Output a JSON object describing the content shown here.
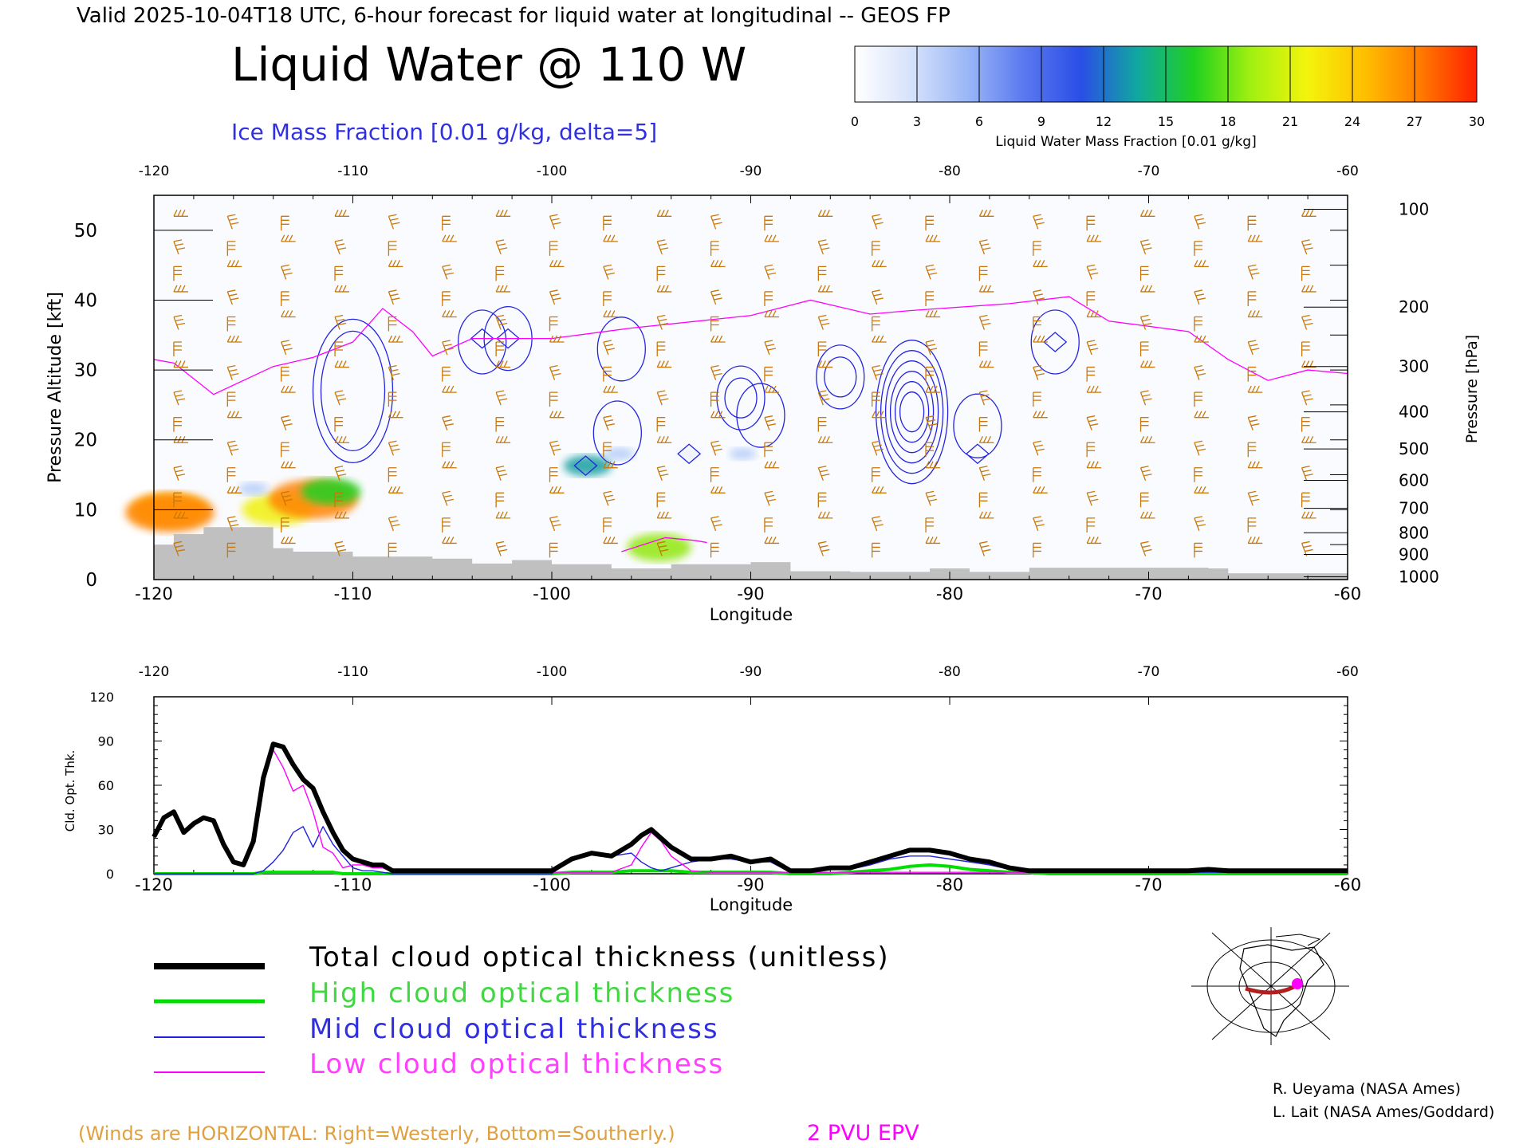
{
  "header": {
    "valid_line": "Valid 2025-10-04T18 UTC, 6-hour forecast for liquid water at longitudinal -- GEOS FP",
    "main_title": "Liquid Water @ 110 W",
    "ice_subtitle": "Ice Mass Fraction [0.01 g/kg, delta=5]"
  },
  "colorbar": {
    "label": "Liquid Water Mass Fraction [0.01 g/kg]",
    "ticks": [
      "0",
      "3",
      "6",
      "9",
      "12",
      "15",
      "18",
      "21",
      "24",
      "27",
      "30"
    ],
    "colors": [
      "#ecf0fc",
      "#b4ccf8",
      "#7c9cf4",
      "#3c5ee8",
      "#16a0a0",
      "#20d020",
      "#92e810",
      "#f0f008",
      "#ffc400",
      "#ff8200"
    ]
  },
  "colors": {
    "wind_barbs": "#c8780a",
    "ice_contours": "#2424e0",
    "epv_line": "#ff00ff",
    "terrain": "#c0c0c0"
  },
  "footer": {
    "winds_note": "(Winds are HORIZONTAL: Right=Westerly, Bottom=Southerly.)",
    "epv_label": "2 PVU EPV",
    "credit1": "R. Ueyama (NASA Ames)",
    "credit2": "L. Lait (NASA Ames/Goddard)"
  },
  "legend": [
    {
      "label": "Total cloud optical thickness (unitless)",
      "color": "#000000"
    },
    {
      "label": "High cloud optical thickness",
      "color": "#00e000"
    },
    {
      "label": "Mid cloud optical thickness",
      "color": "#2020e0"
    },
    {
      "label": "Low cloud optical thickness",
      "color": "#ff00ff"
    }
  ],
  "chart_data": [
    {
      "type": "heatmap",
      "title": "Liquid Water @ 110 W",
      "xlabel": "Longitude",
      "ylabel": "Pressure Altitude [kft]",
      "y2label": "Pressure [hPa]",
      "xlim": [
        -120,
        -60
      ],
      "ylim": [
        0,
        55
      ],
      "xticks": [
        "-120",
        "-110",
        "-100",
        "-90",
        "-80",
        "-70",
        "-60"
      ],
      "yticks": [
        "0",
        "10",
        "20",
        "30",
        "40",
        "50"
      ],
      "pressure_ticks": [
        {
          "label": "100",
          "kft": 53
        },
        {
          "label": "200",
          "kft": 39
        },
        {
          "label": "300",
          "kft": 30.5
        },
        {
          "label": "400",
          "kft": 24
        },
        {
          "label": "500",
          "kft": 18.7
        },
        {
          "label": "600",
          "kft": 14.2
        },
        {
          "label": "700",
          "kft": 10.2
        },
        {
          "label": "800",
          "kft": 6.7
        },
        {
          "label": "900",
          "kft": 3.6
        },
        {
          "label": "1000",
          "kft": 0.4
        }
      ],
      "liquid_water": [
        {
          "lon": -119.2,
          "kft": 10,
          "value": 24
        },
        {
          "lon": -119.2,
          "kft": 9.6,
          "value": 30
        },
        {
          "lon": -113.8,
          "kft": 10,
          "value": 22
        },
        {
          "lon": -112.0,
          "kft": 11.5,
          "value": 30
        },
        {
          "lon": -111.1,
          "kft": 12.6,
          "value": 17
        },
        {
          "lon": -115.0,
          "kft": 13,
          "value": 4
        },
        {
          "lon": -98.2,
          "kft": 16.3,
          "value": 12
        },
        {
          "lon": -96.6,
          "kft": 18,
          "value": 4
        },
        {
          "lon": -94.6,
          "kft": 4.6,
          "value": 19
        },
        {
          "lon": -90.4,
          "kft": 18,
          "value": 3
        },
        {
          "lon": -93.1,
          "kft": 18,
          "value": 2
        }
      ],
      "epv_2pvu_kft": [
        {
          "lon": -120,
          "kft": 31.5
        },
        {
          "lon": -119,
          "kft": 31
        },
        {
          "lon": -117,
          "kft": 26.5
        },
        {
          "lon": -114,
          "kft": 30.5
        },
        {
          "lon": -112,
          "kft": 31.8
        },
        {
          "lon": -110,
          "kft": 34
        },
        {
          "lon": -108.5,
          "kft": 38.8
        },
        {
          "lon": -107,
          "kft": 35.5
        },
        {
          "lon": -106,
          "kft": 32
        },
        {
          "lon": -104,
          "kft": 34.5
        },
        {
          "lon": -100,
          "kft": 34.5
        },
        {
          "lon": -96,
          "kft": 36
        },
        {
          "lon": -90,
          "kft": 37.8
        },
        {
          "lon": -87,
          "kft": 40
        },
        {
          "lon": -84,
          "kft": 38
        },
        {
          "lon": -82,
          "kft": 38.5
        },
        {
          "lon": -77,
          "kft": 39.5
        },
        {
          "lon": -74,
          "kft": 40.5
        },
        {
          "lon": -72,
          "kft": 37
        },
        {
          "lon": -68,
          "kft": 35.5
        },
        {
          "lon": -66,
          "kft": 31.5
        },
        {
          "lon": -64,
          "kft": 28.5
        },
        {
          "lon": -62,
          "kft": 30
        },
        {
          "lon": -60,
          "kft": 29.5
        }
      ],
      "ice_contours": [
        {
          "lon": -110,
          "kft": 27
        },
        {
          "lon": -103.5,
          "kft": 34
        },
        {
          "lon": -102.2,
          "kft": 34.5
        },
        {
          "lon": -96.5,
          "kft": 33
        },
        {
          "lon": -96.7,
          "kft": 21
        },
        {
          "lon": -90.5,
          "kft": 26
        },
        {
          "lon": -89.5,
          "kft": 23.5
        },
        {
          "lon": -85.5,
          "kft": 29
        },
        {
          "lon": -81.9,
          "kft": 24
        },
        {
          "lon": -78.6,
          "kft": 22
        },
        {
          "lon": -74.7,
          "kft": 34
        }
      ],
      "terrain_kft": [
        {
          "lon": -120,
          "kft": 5
        },
        {
          "lon": -119,
          "kft": 6.5
        },
        {
          "lon": -117.5,
          "kft": 7.5
        },
        {
          "lon": -116,
          "kft": 7.5
        },
        {
          "lon": -114,
          "kft": 4.5
        },
        {
          "lon": -113,
          "kft": 4
        },
        {
          "lon": -110,
          "kft": 3.3
        },
        {
          "lon": -106,
          "kft": 3
        },
        {
          "lon": -104,
          "kft": 2.3
        },
        {
          "lon": -102,
          "kft": 2.8
        },
        {
          "lon": -100,
          "kft": 2.2
        },
        {
          "lon": -97,
          "kft": 1.6
        },
        {
          "lon": -94,
          "kft": 2.2
        },
        {
          "lon": -90,
          "kft": 2.5
        },
        {
          "lon": -88,
          "kft": 1.2
        },
        {
          "lon": -85,
          "kft": 1.1
        },
        {
          "lon": -81,
          "kft": 1.6
        },
        {
          "lon": -79,
          "kft": 1.1
        },
        {
          "lon": -76,
          "kft": 1.7
        },
        {
          "lon": -67,
          "kft": 1.6
        },
        {
          "lon": -66,
          "kft": 0.9
        },
        {
          "lon": -60,
          "kft": 0.9
        }
      ]
    },
    {
      "type": "line",
      "xlabel": "Longitude",
      "ylabel": "Cld. Opt. Thk.",
      "xlim": [
        -120,
        -60
      ],
      "ylim": [
        0,
        120
      ],
      "xticks": [
        "-120",
        "-110",
        "-100",
        "-90",
        "-80",
        "-70",
        "-60"
      ],
      "yticks": [
        "0",
        "30",
        "60",
        "90",
        "120"
      ],
      "x": [
        -120,
        -119.5,
        -119,
        -118.5,
        -118,
        -117.5,
        -117,
        -116.5,
        -116,
        -115.5,
        -115,
        -114.5,
        -114,
        -113.5,
        -113,
        -112.5,
        -112,
        -111.5,
        -111,
        -110.5,
        -110,
        -109.5,
        -109,
        -108.5,
        -108,
        -107,
        -106,
        -104,
        -102,
        -100,
        -99,
        -98,
        -97,
        -96,
        -95.5,
        -95,
        -94.5,
        -94,
        -93,
        -92,
        -91,
        -90,
        -89,
        -88,
        -87,
        -86,
        -85,
        -84,
        -83,
        -82,
        -81,
        -80,
        -79,
        -78,
        -77,
        -76,
        -75,
        -74,
        -73,
        -72,
        -70,
        -68,
        -67,
        -66,
        -64,
        -62,
        -60
      ],
      "series": [
        {
          "name": "Total cloud optical thickness (unitless)",
          "values": [
            25,
            38,
            42,
            28,
            34,
            38,
            36,
            20,
            8,
            6,
            22,
            65,
            88,
            86,
            74,
            64,
            58,
            42,
            28,
            16,
            10,
            8,
            6,
            6,
            2,
            2,
            2,
            2,
            2,
            2,
            10,
            14,
            12,
            20,
            26,
            30,
            24,
            18,
            10,
            10,
            12,
            8,
            10,
            2,
            2,
            4,
            4,
            8,
            12,
            16,
            16,
            14,
            10,
            8,
            4,
            2,
            2,
            2,
            2,
            2,
            2,
            2,
            3,
            2,
            2,
            2,
            2
          ]
        },
        {
          "name": "High cloud optical thickness",
          "values": [
            0,
            0,
            0,
            0,
            0,
            0,
            0,
            0,
            0,
            0,
            0,
            1,
            1,
            1,
            1,
            1,
            1,
            1,
            1,
            0,
            0,
            0,
            0,
            0,
            0,
            0,
            0,
            0,
            0,
            0,
            1,
            1,
            1,
            2,
            2,
            2,
            2,
            2,
            1,
            1,
            1,
            1,
            1,
            0,
            0,
            0,
            1,
            2,
            3,
            5,
            6,
            5,
            3,
            2,
            1,
            1,
            0,
            0,
            0,
            0,
            0,
            0,
            0,
            0,
            0,
            0,
            0
          ]
        },
        {
          "name": "Mid cloud optical thickness",
          "values": [
            0,
            0,
            0,
            0,
            0,
            0,
            0,
            0,
            0,
            0,
            0,
            2,
            8,
            16,
            28,
            32,
            18,
            32,
            20,
            12,
            4,
            2,
            2,
            1,
            0,
            0,
            0,
            0,
            0,
            0,
            10,
            14,
            12,
            14,
            8,
            4,
            2,
            4,
            8,
            10,
            10,
            8,
            8,
            1,
            1,
            3,
            3,
            6,
            10,
            12,
            12,
            10,
            8,
            6,
            3,
            1,
            1,
            1,
            1,
            1,
            1,
            1,
            1,
            1,
            1,
            1,
            1
          ]
        },
        {
          "name": "Low cloud optical thickness",
          "values": [
            25,
            38,
            42,
            28,
            34,
            38,
            36,
            20,
            8,
            6,
            20,
            62,
            84,
            72,
            56,
            60,
            42,
            18,
            14,
            4,
            6,
            6,
            4,
            4,
            1,
            1,
            1,
            1,
            1,
            1,
            1,
            1,
            1,
            6,
            18,
            28,
            22,
            12,
            2,
            1,
            1,
            1,
            1,
            1,
            1,
            1,
            1,
            1,
            1,
            1,
            1,
            1,
            1,
            1,
            1,
            1,
            1,
            1,
            1,
            1,
            1,
            1,
            3,
            1,
            1,
            1,
            1
          ]
        }
      ]
    }
  ]
}
